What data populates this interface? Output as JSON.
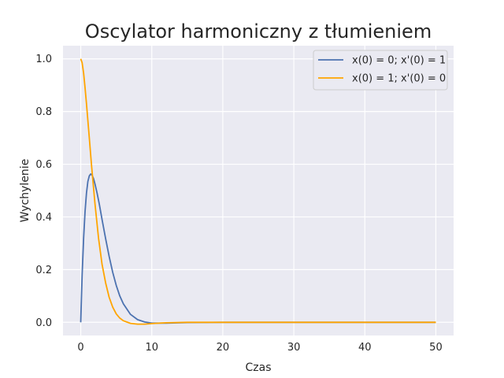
{
  "chart_data": {
    "type": "line",
    "title": "Oscylator harmoniczny z tłumieniem",
    "xlabel": "Czas",
    "ylabel": "Wychylenie",
    "xlim": [
      -2.5,
      52.5
    ],
    "ylim": [
      -0.05,
      1.05
    ],
    "xticks": [
      "0",
      "10",
      "20",
      "30",
      "40",
      "50"
    ],
    "yticks": [
      "0.0",
      "0.2",
      "0.4",
      "0.6",
      "0.8",
      "1.0"
    ],
    "grid": true,
    "legend_position": "top-right",
    "colors": {
      "background": "#eaeaf2",
      "grid": "#ffffff"
    },
    "series": [
      {
        "name": "x(0) = 0; x'(0) = 1",
        "color": "#4c72b0",
        "x": [
          0,
          0.2,
          0.4,
          0.6,
          0.8,
          1.0,
          1.2,
          1.4,
          1.6,
          1.8,
          2.0,
          2.3,
          2.6,
          3.0,
          3.5,
          4.0,
          4.5,
          5.0,
          5.5,
          6.0,
          7.0,
          8.0,
          9.0,
          10.0,
          12.0,
          15.0,
          20.0,
          30.0,
          40.0,
          50.0
        ],
        "y": [
          0.0,
          0.18,
          0.32,
          0.42,
          0.49,
          0.535,
          0.556,
          0.563,
          0.558,
          0.545,
          0.525,
          0.49,
          0.45,
          0.39,
          0.318,
          0.25,
          0.19,
          0.14,
          0.1,
          0.07,
          0.03,
          0.01,
          0.001,
          -0.003,
          -0.003,
          -0.001,
          0.0,
          0.0,
          0.0,
          0.0
        ]
      },
      {
        "name": "x(0) = 1; x'(0) = 0",
        "color": "#ffa500",
        "x": [
          0,
          0.2,
          0.4,
          0.6,
          0.8,
          1.0,
          1.2,
          1.5,
          2.0,
          2.5,
          3.0,
          3.5,
          4.0,
          4.5,
          5.0,
          5.5,
          6.0,
          7.0,
          8.0,
          9.0,
          10.0,
          12.0,
          15.0,
          20.0,
          30.0,
          40.0,
          50.0
        ],
        "y": [
          1.0,
          0.985,
          0.945,
          0.89,
          0.83,
          0.765,
          0.7,
          0.6,
          0.45,
          0.32,
          0.22,
          0.15,
          0.095,
          0.058,
          0.032,
          0.016,
          0.006,
          -0.004,
          -0.007,
          -0.007,
          -0.005,
          -0.002,
          0.0,
          0.0,
          0.0,
          0.0,
          0.0
        ]
      }
    ]
  }
}
